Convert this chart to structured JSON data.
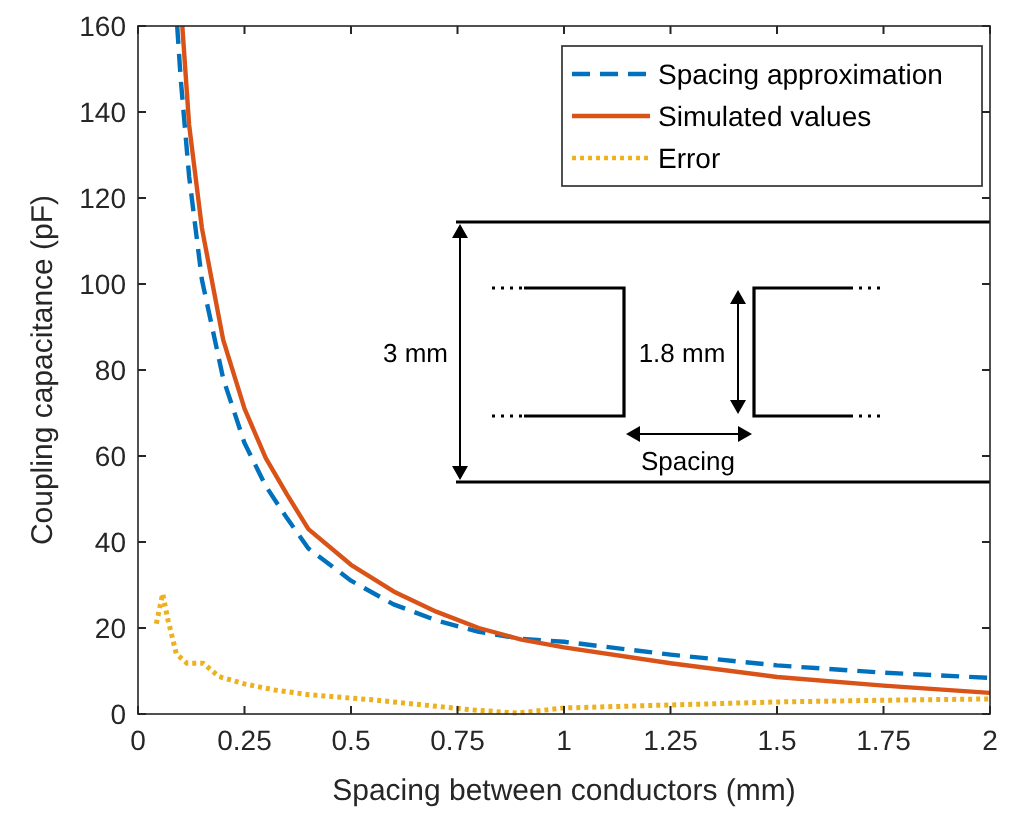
{
  "chart_data": {
    "type": "line",
    "xlabel": "Spacing between conductors (mm)",
    "ylabel": "Coupling capacitance (pF)",
    "xlim": [
      0,
      2
    ],
    "ylim": [
      0,
      160
    ],
    "xticks": [
      0,
      0.25,
      0.5,
      0.75,
      1,
      1.25,
      1.5,
      1.75,
      2
    ],
    "yticks": [
      0,
      20,
      40,
      60,
      80,
      100,
      120,
      140,
      160
    ],
    "grid": false,
    "legend": "top right",
    "series": [
      {
        "name": "Spacing approximation",
        "color": "#0072bd",
        "line_style": "dashed",
        "x": [
          0.092,
          0.1,
          0.12,
          0.15,
          0.2,
          0.25,
          0.3,
          0.35,
          0.4,
          0.5,
          0.6,
          0.7,
          0.8,
          0.9,
          1,
          1.25,
          1.5,
          1.75,
          2
        ],
        "values": [
          160,
          148,
          125,
          101,
          78,
          63,
          53,
          45.5,
          38.5,
          31,
          25.5,
          21.8,
          19.1,
          17.5,
          16.8,
          13.8,
          11.3,
          9.6,
          8.4
        ]
      },
      {
        "name": "Simulated values",
        "color": "#d95319",
        "line_style": "solid",
        "x": [
          0.104,
          0.12,
          0.15,
          0.2,
          0.25,
          0.3,
          0.35,
          0.4,
          0.5,
          0.6,
          0.7,
          0.8,
          0.9,
          1,
          1.25,
          1.5,
          1.75,
          2
        ],
        "values": [
          160,
          137,
          113,
          87,
          71,
          59.5,
          51,
          43,
          34.7,
          28.5,
          23.8,
          20,
          17.3,
          15.5,
          11.8,
          8.6,
          6.6,
          4.9
        ]
      },
      {
        "name": "Error",
        "color": "#edb120",
        "line_style": "dotted",
        "x": [
          0.043,
          0.058,
          0.07,
          0.09,
          0.115,
          0.153,
          0.19,
          0.25,
          0.32,
          0.4,
          0.55,
          0.7,
          0.78,
          0.89,
          1,
          1.25,
          1.5,
          1.75,
          2
        ],
        "values": [
          21,
          28,
          22,
          14,
          11.8,
          11.8,
          8.7,
          7,
          5.6,
          4.5,
          3.3,
          1.8,
          1,
          0.2,
          1.4,
          2.1,
          2.8,
          3.2,
          3.5
        ]
      }
    ],
    "annotations": [
      "3 mm",
      "1.8 mm",
      "Spacing"
    ]
  }
}
